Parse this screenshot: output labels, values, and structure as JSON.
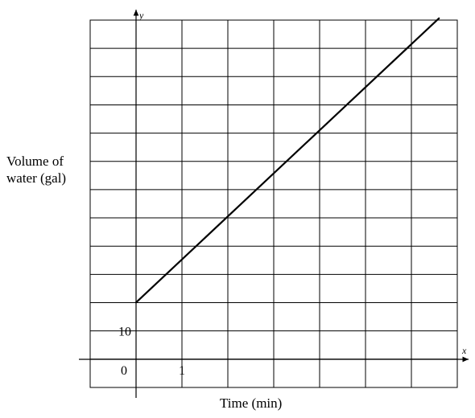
{
  "chart_data": {
    "type": "line",
    "title": "",
    "xlabel": "Time (min)",
    "ylabel": "Volume of\nwater (gal)",
    "axis_letters": {
      "x": "x",
      "y": "y"
    },
    "x_tick_labels": [
      {
        "value": 1,
        "label": "1"
      }
    ],
    "y_tick_labels": [
      {
        "value": 10,
        "label": "10"
      }
    ],
    "origin_label": "0",
    "xlim": [
      -1,
      7
    ],
    "ylim": [
      -10,
      120
    ],
    "grid": true,
    "legend": "none",
    "series": [
      {
        "x": [
          0,
          6.6
        ],
        "y": [
          20,
          120
        ],
        "color": "#000000"
      }
    ]
  }
}
